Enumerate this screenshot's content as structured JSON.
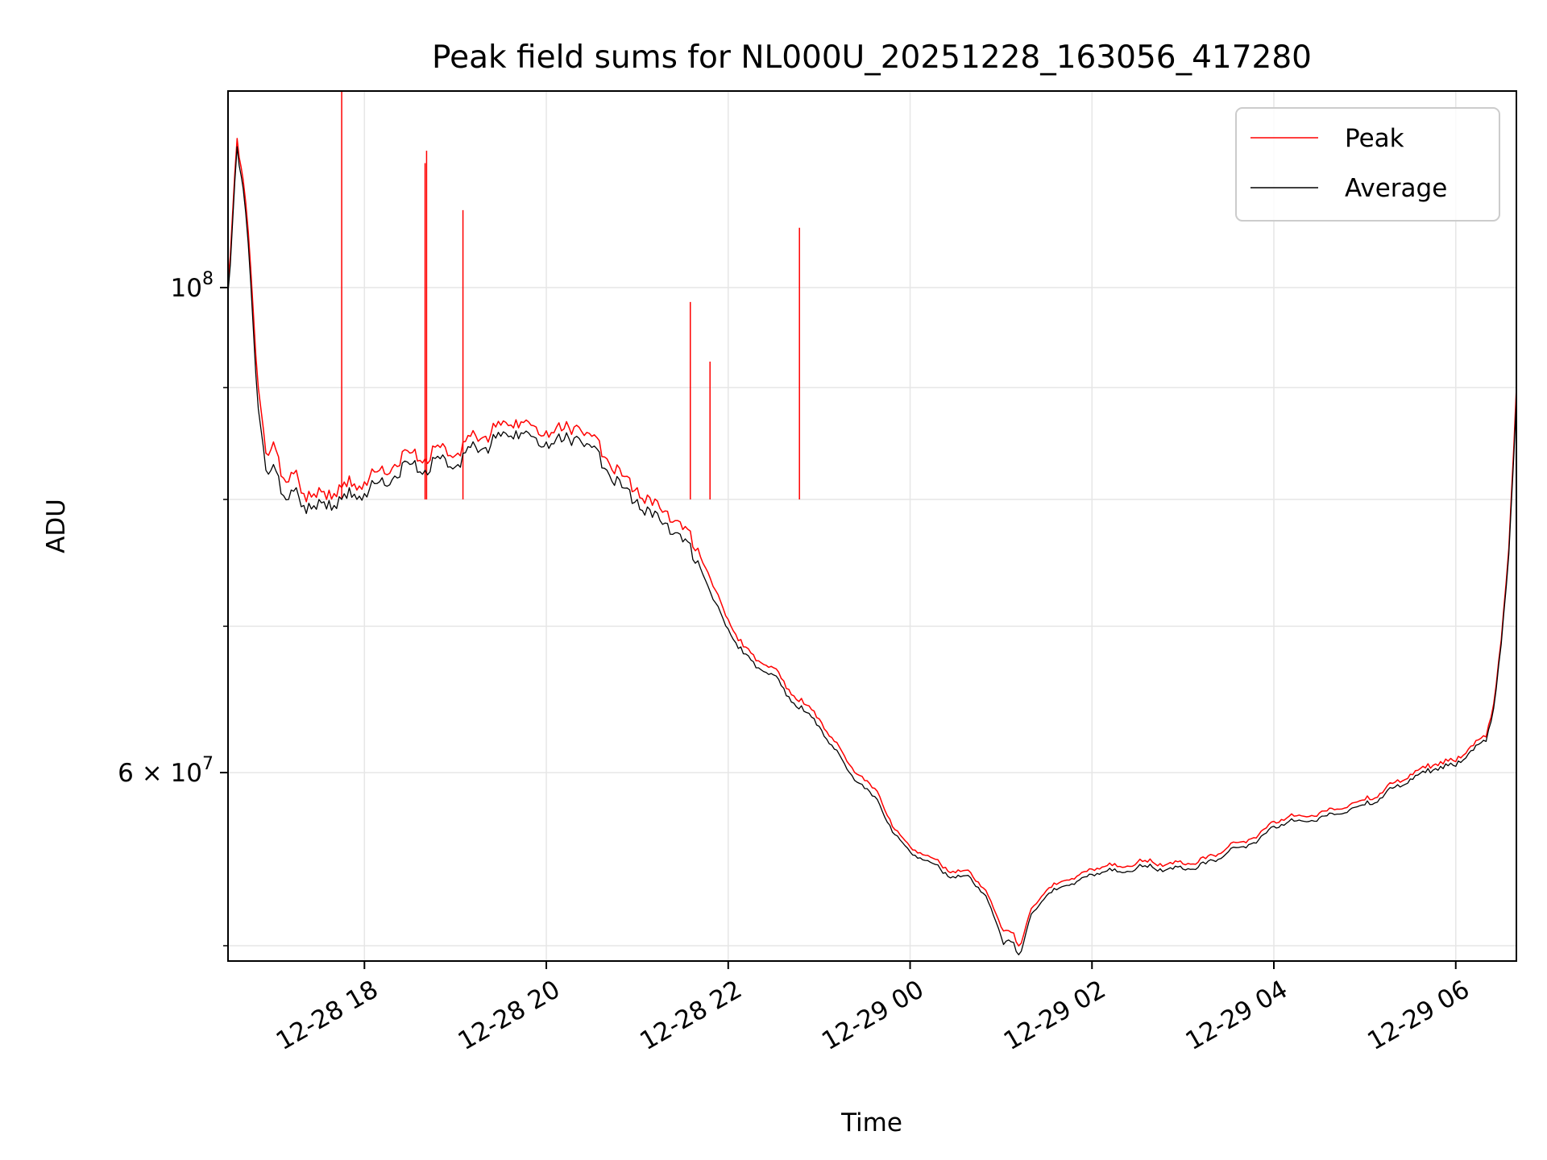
{
  "chart_data": {
    "type": "line",
    "title": "Peak field sums for NL000U_20251228_163056_417280",
    "xlabel": "Time",
    "ylabel": "ADU",
    "y_scale": "log",
    "xlim": [
      "2025-12-28 16:30",
      "2025-12-29 06:40"
    ],
    "ylim": [
      49200000,
      123000000
    ],
    "grid": true,
    "legend_position": "top-right",
    "x_ticks": [
      {
        "value": "2025-12-28 18:00",
        "label": "12-28 18"
      },
      {
        "value": "2025-12-28 20:00",
        "label": "12-28 20"
      },
      {
        "value": "2025-12-28 22:00",
        "label": "12-28 22"
      },
      {
        "value": "2025-12-29 00:00",
        "label": "12-29 00"
      },
      {
        "value": "2025-12-29 02:00",
        "label": "12-29 02"
      },
      {
        "value": "2025-12-29 04:00",
        "label": "12-29 04"
      },
      {
        "value": "2025-12-29 06:00",
        "label": "12-29 06"
      }
    ],
    "y_ticks": [
      {
        "value": 100000000,
        "base": "10",
        "exp": "8",
        "mant": ""
      },
      {
        "value": 60000000,
        "base": "10",
        "exp": "7",
        "mant": "6 × "
      }
    ],
    "y_minor_ticks": [
      50000000,
      70000000,
      80000000,
      90000000
    ],
    "colors": {
      "peak": "#ff0000",
      "average": "#000000",
      "grid": "#e6e6e6"
    },
    "series": [
      {
        "name": "Peak",
        "color": "#ff0000",
        "x": [
          "2025-12-28 16:30",
          "2025-12-28 16:33",
          "2025-12-28 16:36",
          "2025-12-28 16:40",
          "2025-12-28 16:45",
          "2025-12-28 16:50",
          "2025-12-28 16:55",
          "2025-12-28 17:00",
          "2025-12-28 17:05",
          "2025-12-28 17:10",
          "2025-12-28 17:15",
          "2025-12-28 17:20",
          "2025-12-28 17:25",
          "2025-12-28 17:30",
          "2025-12-28 17:35",
          "2025-12-28 17:40",
          "2025-12-28 17:45",
          "2025-12-28 17:50",
          "2025-12-28 17:55",
          "2025-12-28 18:00",
          "2025-12-28 18:10",
          "2025-12-28 18:20",
          "2025-12-28 18:30",
          "2025-12-28 18:40",
          "2025-12-28 18:50",
          "2025-12-28 19:00",
          "2025-12-28 19:10",
          "2025-12-28 19:20",
          "2025-12-28 19:30",
          "2025-12-28 19:40",
          "2025-12-28 19:50",
          "2025-12-28 20:00",
          "2025-12-28 20:10",
          "2025-12-28 20:20",
          "2025-12-28 20:30",
          "2025-12-28 20:40",
          "2025-12-28 20:50",
          "2025-12-28 21:00",
          "2025-12-28 21:10",
          "2025-12-28 21:20",
          "2025-12-28 21:30",
          "2025-12-28 21:40",
          "2025-12-28 21:50",
          "2025-12-28 22:00",
          "2025-12-28 22:10",
          "2025-12-28 22:20",
          "2025-12-28 22:30",
          "2025-12-28 22:40",
          "2025-12-28 22:50",
          "2025-12-28 23:00",
          "2025-12-28 23:10",
          "2025-12-28 23:20",
          "2025-12-28 23:30",
          "2025-12-28 23:40",
          "2025-12-28 23:50",
          "2025-12-29 00:00",
          "2025-12-29 00:10",
          "2025-12-29 00:20",
          "2025-12-29 00:30",
          "2025-12-29 00:40",
          "2025-12-29 00:50",
          "2025-12-29 01:00",
          "2025-12-29 01:05",
          "2025-12-29 01:10",
          "2025-12-29 01:15",
          "2025-12-29 01:20",
          "2025-12-29 01:30",
          "2025-12-29 01:40",
          "2025-12-29 01:50",
          "2025-12-29 02:00",
          "2025-12-29 02:10",
          "2025-12-29 02:20",
          "2025-12-29 02:30",
          "2025-12-29 02:40",
          "2025-12-29 02:50",
          "2025-12-29 03:00",
          "2025-12-29 03:10",
          "2025-12-29 03:20",
          "2025-12-29 03:30",
          "2025-12-29 03:40",
          "2025-12-29 03:50",
          "2025-12-29 04:00",
          "2025-12-29 04:10",
          "2025-12-29 04:20",
          "2025-12-29 04:30",
          "2025-12-29 04:40",
          "2025-12-29 04:50",
          "2025-12-29 05:00",
          "2025-12-29 05:10",
          "2025-12-29 05:20",
          "2025-12-29 05:30",
          "2025-12-29 05:40",
          "2025-12-29 05:50",
          "2025-12-29 06:00",
          "2025-12-29 06:10",
          "2025-12-29 06:20",
          "2025-12-29 06:25",
          "2025-12-29 06:30",
          "2025-12-29 06:35",
          "2025-12-29 06:40"
        ],
        "y": [
          100500000,
          108000000,
          117000000,
          112000000,
          102000000,
          90000000,
          84000000,
          85000000,
          82000000,
          81500000,
          82500000,
          80500000,
          80200000,
          81000000,
          80000000,
          80500000,
          81000000,
          82000000,
          80800000,
          81500000,
          82500000,
          83000000,
          84000000,
          83500000,
          84500000,
          83800000,
          85500000,
          85500000,
          86500000,
          87000000,
          86500000,
          86000000,
          86000000,
          86500000,
          85500000,
          83500000,
          82000000,
          81000000,
          79500000,
          79000000,
          77500000,
          76000000,
          73000000,
          70500000,
          68500000,
          67500000,
          67000000,
          65500000,
          64500000,
          63500000,
          62000000,
          60500000,
          59500000,
          58500000,
          56500000,
          55500000,
          55000000,
          54500000,
          54000000,
          54000000,
          53000000,
          51000000,
          50800000,
          50200000,
          50600000,
          52000000,
          53000000,
          53500000,
          53800000,
          54200000,
          54400000,
          54300000,
          54600000,
          54600000,
          54500000,
          54500000,
          54600000,
          55000000,
          55500000,
          55800000,
          56200000,
          57000000,
          57300000,
          57300000,
          57500000,
          57700000,
          58000000,
          58300000,
          58700000,
          59400000,
          59900000,
          60300000,
          60700000,
          60700000,
          61700000,
          62300000,
          64500000,
          69000000,
          76000000,
          90000000
        ]
      },
      {
        "name": "Average",
        "color": "#000000",
        "x": [
          "2025-12-28 16:30",
          "2025-12-28 16:33",
          "2025-12-28 16:36",
          "2025-12-28 16:40",
          "2025-12-28 16:45",
          "2025-12-28 16:50",
          "2025-12-28 16:55",
          "2025-12-28 17:00",
          "2025-12-28 17:05",
          "2025-12-28 17:10",
          "2025-12-28 17:15",
          "2025-12-28 17:20",
          "2025-12-28 17:25",
          "2025-12-28 17:30",
          "2025-12-28 17:35",
          "2025-12-28 17:40",
          "2025-12-28 17:45",
          "2025-12-28 17:50",
          "2025-12-28 17:55",
          "2025-12-28 18:00",
          "2025-12-28 18:10",
          "2025-12-28 18:20",
          "2025-12-28 18:30",
          "2025-12-28 18:40",
          "2025-12-28 18:50",
          "2025-12-28 19:00",
          "2025-12-28 19:10",
          "2025-12-28 19:20",
          "2025-12-28 19:30",
          "2025-12-28 19:40",
          "2025-12-28 19:50",
          "2025-12-28 20:00",
          "2025-12-28 20:10",
          "2025-12-28 20:20",
          "2025-12-28 20:30",
          "2025-12-28 20:40",
          "2025-12-28 20:50",
          "2025-12-28 21:00",
          "2025-12-28 21:10",
          "2025-12-28 21:20",
          "2025-12-28 21:30",
          "2025-12-28 21:40",
          "2025-12-28 21:50",
          "2025-12-28 22:00",
          "2025-12-28 22:10",
          "2025-12-28 22:20",
          "2025-12-28 22:30",
          "2025-12-28 22:40",
          "2025-12-28 22:50",
          "2025-12-28 23:00",
          "2025-12-28 23:10",
          "2025-12-28 23:20",
          "2025-12-28 23:30",
          "2025-12-28 23:40",
          "2025-12-28 23:50",
          "2025-12-29 00:00",
          "2025-12-29 00:10",
          "2025-12-29 00:20",
          "2025-12-29 00:30",
          "2025-12-29 00:40",
          "2025-12-29 00:50",
          "2025-12-29 01:00",
          "2025-12-29 01:05",
          "2025-12-29 01:10",
          "2025-12-29 01:15",
          "2025-12-29 01:20",
          "2025-12-29 01:30",
          "2025-12-29 01:40",
          "2025-12-29 01:50",
          "2025-12-29 02:00",
          "2025-12-29 02:10",
          "2025-12-29 02:20",
          "2025-12-29 02:30",
          "2025-12-29 02:40",
          "2025-12-29 02:50",
          "2025-12-29 03:00",
          "2025-12-29 03:10",
          "2025-12-29 03:20",
          "2025-12-29 03:30",
          "2025-12-29 03:40",
          "2025-12-29 03:50",
          "2025-12-29 04:00",
          "2025-12-29 04:10",
          "2025-12-29 04:20",
          "2025-12-29 04:30",
          "2025-12-29 04:40",
          "2025-12-29 04:50",
          "2025-12-29 05:00",
          "2025-12-29 05:10",
          "2025-12-29 05:20",
          "2025-12-29 05:30",
          "2025-12-29 05:40",
          "2025-12-29 05:50",
          "2025-12-29 06:00",
          "2025-12-29 06:10",
          "2025-12-29 06:20",
          "2025-12-29 06:25",
          "2025-12-29 06:30",
          "2025-12-29 06:35",
          "2025-12-29 06:40"
        ],
        "y": [
          99500000,
          107000000,
          116000000,
          111000000,
          100500000,
          88000000,
          82500000,
          83000000,
          80500000,
          80000000,
          81000000,
          79500000,
          79200000,
          80000000,
          79200000,
          79500000,
          80000000,
          81000000,
          80000000,
          80500000,
          81500000,
          82000000,
          83000000,
          82500000,
          83500000,
          82800000,
          84500000,
          84500000,
          85500000,
          86000000,
          85500000,
          85000000,
          85000000,
          85500000,
          84500000,
          82500000,
          81000000,
          80000000,
          78500000,
          78000000,
          76500000,
          75000000,
          72000000,
          69800000,
          68000000,
          67000000,
          66500000,
          65000000,
          64000000,
          63000000,
          61500000,
          60000000,
          59000000,
          58000000,
          56200000,
          55200000,
          54700000,
          54200000,
          53700000,
          53700000,
          52700000,
          50500000,
          50300000,
          49700000,
          50200000,
          51700000,
          52700000,
          53200000,
          53500000,
          53900000,
          54100000,
          54000000,
          54300000,
          54300000,
          54200000,
          54200000,
          54300000,
          54700000,
          55200000,
          55500000,
          55900000,
          56700000,
          57000000,
          57000000,
          57200000,
          57400000,
          57700000,
          58000000,
          58400000,
          59100000,
          59600000,
          60000000,
          60400000,
          60400000,
          61400000,
          62000000,
          64200000,
          68700000,
          75500000,
          89000000
        ]
      }
    ],
    "spikes": [
      {
        "x": "2025-12-28 17:45",
        "y": 123000000
      },
      {
        "x": "2025-12-28 18:40",
        "y": 114000000
      },
      {
        "x": "2025-12-28 18:41",
        "y": 115500000
      },
      {
        "x": "2025-12-28 19:05",
        "y": 108500000
      },
      {
        "x": "2025-12-28 21:35",
        "y": 98500000
      },
      {
        "x": "2025-12-28 21:48",
        "y": 92500000
      },
      {
        "x": "2025-12-28 22:47",
        "y": 106500000
      }
    ]
  }
}
